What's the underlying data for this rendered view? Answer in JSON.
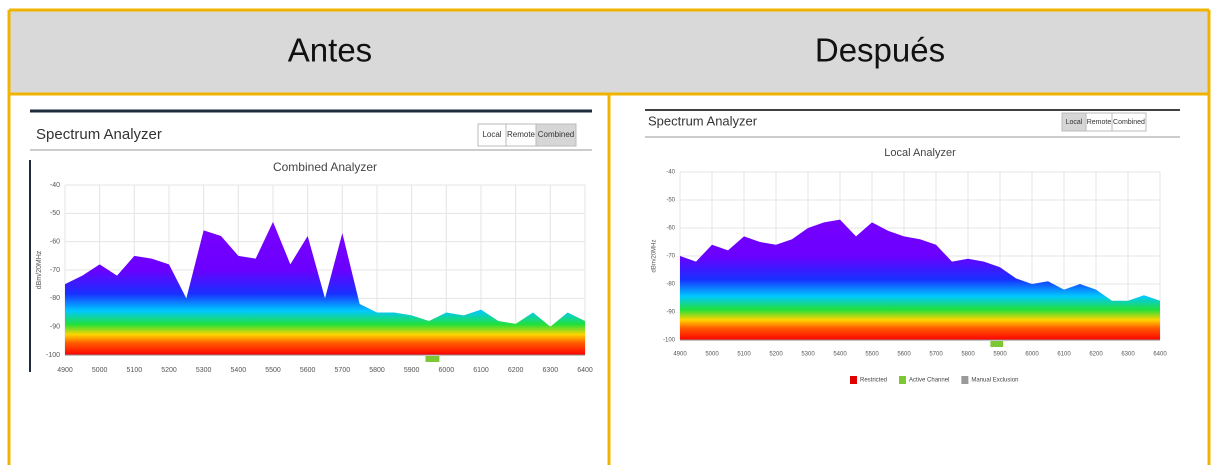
{
  "header": {
    "left": "Antes",
    "right": "Después"
  },
  "panels": [
    {
      "app_title": "Spectrum Analyzer",
      "tabs": [
        "Local",
        "Remote",
        "Combined"
      ],
      "active_tab": 2
    },
    {
      "app_title": "Spectrum Analyzer",
      "tabs": [
        "Local",
        "Remote",
        "Combined"
      ],
      "active_tab": 0
    }
  ],
  "chart_data": [
    {
      "type": "area",
      "title": "Combined Analyzer",
      "y_label": "dBm/20MHz",
      "x": [
        4900,
        4950,
        5000,
        5050,
        5100,
        5150,
        5200,
        5250,
        5300,
        5350,
        5400,
        5450,
        5500,
        5550,
        5600,
        5650,
        5700,
        5750,
        5800,
        5850,
        5900,
        5950,
        6000,
        6050,
        6100,
        6150,
        6200,
        6250,
        6300,
        6350,
        6400
      ],
      "values": [
        -75,
        -72,
        -68,
        -72,
        -65,
        -66,
        -68,
        -80,
        -56,
        -58,
        -65,
        -66,
        -53,
        -68,
        -58,
        -80,
        -57,
        -82,
        -85,
        -85,
        -86,
        -88,
        -85,
        -86,
        -84,
        -88,
        -89,
        -85,
        -90,
        -85,
        -88
      ],
      "colors": [
        "#ff0000",
        "#ff5a00",
        "#ffd400",
        "#22e03a",
        "#00c8ff",
        "#1830ff",
        "#6a00ff",
        "#8a00ff"
      ],
      "xlim": [
        4900,
        6400
      ],
      "ylim": [
        -100,
        -40
      ],
      "xticks": [
        4900,
        5000,
        5100,
        5200,
        5300,
        5400,
        5500,
        5600,
        5700,
        5800,
        5900,
        6000,
        6100,
        6200,
        6300,
        6400
      ],
      "yticks": [
        -40,
        -50,
        -60,
        -70,
        -80,
        -90,
        -100
      ],
      "active_channel": [
        5940,
        5980
      ],
      "active_color": "#7dc832",
      "grid": true
    },
    {
      "type": "area",
      "title": "Local Analyzer",
      "y_label": "dBm/20MHz",
      "x": [
        4900,
        4950,
        5000,
        5050,
        5100,
        5150,
        5200,
        5250,
        5300,
        5350,
        5400,
        5450,
        5500,
        5550,
        5600,
        5650,
        5700,
        5750,
        5800,
        5850,
        5900,
        5950,
        6000,
        6050,
        6100,
        6150,
        6200,
        6250,
        6300,
        6350,
        6400
      ],
      "values": [
        -70,
        -72,
        -66,
        -68,
        -63,
        -65,
        -66,
        -64,
        -60,
        -58,
        -57,
        -63,
        -58,
        -61,
        -63,
        -64,
        -66,
        -72,
        -71,
        -72,
        -74,
        -78,
        -80,
        -79,
        -82,
        -80,
        -82,
        -86,
        -86,
        -84,
        -86
      ],
      "colors": [
        "#ff0000",
        "#ff5a00",
        "#ffd400",
        "#22e03a",
        "#00c8ff",
        "#1830ff",
        "#6a00ff",
        "#8a00ff"
      ],
      "xlim": [
        4900,
        6400
      ],
      "ylim": [
        -100,
        -40
      ],
      "xticks": [
        4900,
        5000,
        5100,
        5200,
        5300,
        5400,
        5500,
        5600,
        5700,
        5800,
        5900,
        6000,
        6100,
        6200,
        6300,
        6400
      ],
      "yticks": [
        -40,
        -50,
        -60,
        -70,
        -80,
        -90,
        -100
      ],
      "active_channel": [
        5870,
        5910
      ],
      "active_color": "#7dc832",
      "grid": true,
      "legend": [
        {
          "name": "Restricted",
          "color": "#e00000"
        },
        {
          "name": "Active Channel",
          "color": "#7dc832"
        },
        {
          "name": "Manual Exclusion",
          "color": "#999999"
        }
      ]
    }
  ]
}
